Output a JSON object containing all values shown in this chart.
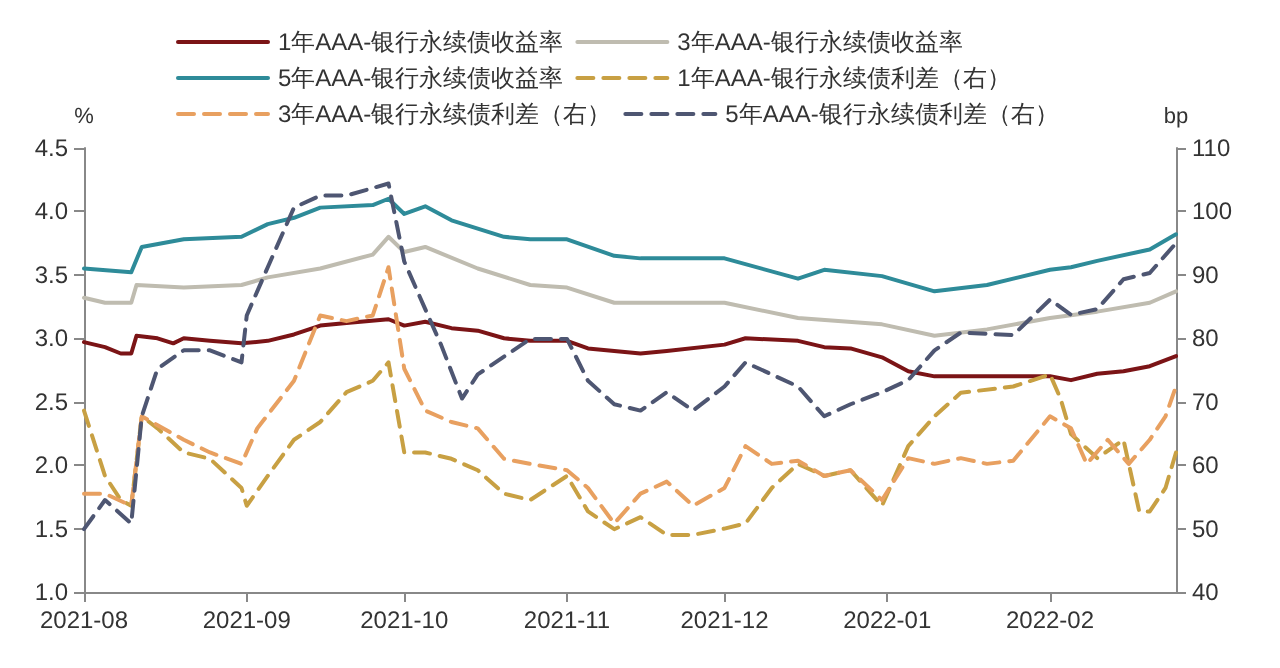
{
  "chart_data": {
    "type": "line",
    "ylabel": "%",
    "y2label": "bp",
    "xlim": [
      "2021-08-01",
      "2022-02-25"
    ],
    "xticks": [
      "2021-08",
      "2021-09",
      "2021-10",
      "2021-11",
      "2021-12",
      "2022-01",
      "2022-02"
    ],
    "ylim": [
      1.0,
      4.5
    ],
    "yticks": [
      {
        "value": 1.0,
        "label": "1.0"
      },
      1.5,
      {
        "value": 2.0,
        "label": "2.0"
      },
      2.5,
      {
        "value": 3.0,
        "label": "3.0"
      },
      3.5,
      {
        "value": 4.0,
        "label": "4.0"
      },
      4.5
    ],
    "y2lim": [
      40,
      110
    ],
    "y2ticks": [
      40,
      50,
      60,
      70,
      80,
      90,
      100,
      110
    ],
    "grid": false,
    "legend": "top",
    "marker": "none",
    "series": [
      {
        "name": "1年AAA-银行永续债收益率",
        "color": "#7b1416",
        "line_style": "solid",
        "x": [
          "2021-08-01",
          "2021-08-05",
          "2021-08-08",
          "2021-08-10",
          "2021-08-11",
          "2021-08-15",
          "2021-08-18",
          "2021-08-20",
          "2021-08-25",
          "2021-08-31",
          "2021-09-05",
          "2021-09-10",
          "2021-09-15",
          "2021-09-20",
          "2021-09-28",
          "2021-10-01",
          "2021-10-05",
          "2021-10-10",
          "2021-10-15",
          "2021-10-20",
          "2021-10-25",
          "2021-11-01",
          "2021-11-05",
          "2021-11-10",
          "2021-11-15",
          "2021-11-20",
          "2021-12-01",
          "2021-12-05",
          "2021-12-15",
          "2021-12-20",
          "2021-12-25",
          "2021-12-31",
          "2022-01-05",
          "2022-01-10",
          "2022-01-20",
          "2022-02-01",
          "2022-02-05",
          "2022-02-10",
          "2022-02-15",
          "2022-02-20",
          "2022-02-25"
        ],
        "values": [
          2.97,
          2.93,
          2.88,
          2.88,
          3.02,
          3.0,
          2.96,
          3.0,
          2.98,
          2.96,
          2.98,
          3.03,
          3.1,
          3.12,
          3.15,
          3.1,
          3.13,
          3.08,
          3.06,
          3.0,
          2.98,
          2.98,
          2.92,
          2.9,
          2.88,
          2.9,
          2.95,
          3.0,
          2.98,
          2.93,
          2.92,
          2.85,
          2.74,
          2.7,
          2.7,
          2.7,
          2.67,
          2.72,
          2.74,
          2.78,
          2.86
        ]
      },
      {
        "name": "3年AAA-银行永续债收益率",
        "color": "#bfbcb0",
        "line_style": "solid",
        "x": [
          "2021-08-01",
          "2021-08-05",
          "2021-08-10",
          "2021-08-11",
          "2021-08-20",
          "2021-08-31",
          "2021-09-05",
          "2021-09-15",
          "2021-09-25",
          "2021-09-28",
          "2021-10-01",
          "2021-10-05",
          "2021-10-15",
          "2021-10-25",
          "2021-11-01",
          "2021-11-10",
          "2021-11-20",
          "2021-12-01",
          "2021-12-15",
          "2021-12-31",
          "2022-01-10",
          "2022-01-20",
          "2022-02-01",
          "2022-02-10",
          "2022-02-20",
          "2022-02-25"
        ],
        "values": [
          3.32,
          3.28,
          3.28,
          3.42,
          3.4,
          3.42,
          3.48,
          3.55,
          3.66,
          3.8,
          3.68,
          3.72,
          3.55,
          3.42,
          3.4,
          3.28,
          3.28,
          3.28,
          3.16,
          3.11,
          3.02,
          3.07,
          3.16,
          3.21,
          3.28,
          3.37
        ]
      },
      {
        "name": "5年AAA-银行永续债收益率",
        "color": "#2e8b99",
        "line_style": "solid",
        "x": [
          "2021-08-01",
          "2021-08-10",
          "2021-08-12",
          "2021-08-20",
          "2021-08-31",
          "2021-09-05",
          "2021-09-10",
          "2021-09-15",
          "2021-09-25",
          "2021-09-28",
          "2021-10-01",
          "2021-10-05",
          "2021-10-10",
          "2021-10-20",
          "2021-10-25",
          "2021-11-01",
          "2021-11-10",
          "2021-11-15",
          "2021-12-01",
          "2021-12-15",
          "2021-12-20",
          "2021-12-31",
          "2022-01-10",
          "2022-01-20",
          "2022-02-01",
          "2022-02-05",
          "2022-02-10",
          "2022-02-20",
          "2022-02-25"
        ],
        "values": [
          3.55,
          3.52,
          3.72,
          3.78,
          3.8,
          3.9,
          3.95,
          4.03,
          4.05,
          4.1,
          3.98,
          4.04,
          3.93,
          3.8,
          3.78,
          3.78,
          3.65,
          3.63,
          3.63,
          3.47,
          3.54,
          3.49,
          3.37,
          3.42,
          3.54,
          3.56,
          3.61,
          3.7,
          3.82
        ]
      },
      {
        "name": "1年AAA-银行永续债利差（右）",
        "color": "#c8a043",
        "line_style": "dashed",
        "axis": "y2",
        "x": [
          "2021-08-01",
          "2021-08-05",
          "2021-08-08",
          "2021-08-10",
          "2021-08-12",
          "2021-08-15",
          "2021-08-20",
          "2021-08-25",
          "2021-08-31",
          "2021-09-01",
          "2021-09-05",
          "2021-09-10",
          "2021-09-15",
          "2021-09-20",
          "2021-09-25",
          "2021-09-28",
          "2021-10-01",
          "2021-10-05",
          "2021-10-10",
          "2021-10-15",
          "2021-10-20",
          "2021-10-25",
          "2021-11-01",
          "2021-11-05",
          "2021-11-10",
          "2021-11-15",
          "2021-11-20",
          "2021-11-25",
          "2021-12-01",
          "2021-12-05",
          "2021-12-10",
          "2021-12-15",
          "2021-12-20",
          "2021-12-25",
          "2021-12-31",
          "2022-01-05",
          "2022-01-10",
          "2022-01-15",
          "2022-01-25",
          "2022-02-01",
          "2022-02-03",
          "2022-02-05",
          "2022-02-10",
          "2022-02-15",
          "2022-02-18",
          "2022-02-20",
          "2022-02-23",
          "2022-02-25"
        ],
        "values": [
          68.6,
          58.3,
          54.5,
          53.6,
          67.7,
          65.8,
          62,
          61,
          56.4,
          53.6,
          58.3,
          64,
          66.8,
          71.5,
          73.3,
          76.2,
          62,
          62,
          61,
          59.2,
          55.5,
          54.5,
          58.3,
          52.7,
          49.9,
          51.8,
          49,
          49,
          50,
          50.8,
          56.4,
          60.2,
          58.3,
          59.2,
          53.6,
          63,
          67.7,
          71.4,
          72.4,
          74.3,
          70.5,
          64.9,
          61.1,
          64,
          52.7,
          52.7,
          56.4,
          62
        ]
      },
      {
        "name": "3年AAA-银行永续债利差（右）",
        "color": "#e8a060",
        "line_style": "dashed",
        "axis": "y2",
        "x": [
          "2021-08-01",
          "2021-08-05",
          "2021-08-10",
          "2021-08-12",
          "2021-08-20",
          "2021-08-25",
          "2021-08-31",
          "2021-09-03",
          "2021-09-10",
          "2021-09-15",
          "2021-09-20",
          "2021-09-25",
          "2021-09-28",
          "2021-10-01",
          "2021-10-05",
          "2021-10-10",
          "2021-10-15",
          "2021-10-20",
          "2021-10-25",
          "2021-11-01",
          "2021-11-05",
          "2021-11-10",
          "2021-11-15",
          "2021-11-20",
          "2021-11-25",
          "2021-12-01",
          "2021-12-05",
          "2021-12-10",
          "2021-12-15",
          "2021-12-20",
          "2021-12-25",
          "2021-12-31",
          "2022-01-05",
          "2022-01-10",
          "2022-01-15",
          "2022-01-20",
          "2022-01-25",
          "2022-02-01",
          "2022-02-05",
          "2022-02-08",
          "2022-02-12",
          "2022-02-16",
          "2022-02-20",
          "2022-02-23",
          "2022-02-25"
        ],
        "values": [
          55.5,
          55.5,
          53.6,
          67.7,
          64,
          62,
          60.2,
          65.8,
          73.3,
          83.6,
          82.7,
          83.6,
          91.2,
          75.2,
          68.6,
          66.8,
          65.8,
          61,
          60.2,
          59.2,
          56.4,
          50.8,
          55.5,
          57.4,
          53.6,
          56.4,
          63,
          60.2,
          60.7,
          58.3,
          59.2,
          54.5,
          61.1,
          60.2,
          61.1,
          60.2,
          60.7,
          67.7,
          65.8,
          60.2,
          64,
          60.2,
          64,
          67.7,
          72.4
        ]
      },
      {
        "name": "5年AAA-银行永续债利差（右）",
        "color": "#4e5672",
        "line_style": "dashed",
        "axis": "y2",
        "x": [
          "2021-08-01",
          "2021-08-05",
          "2021-08-10",
          "2021-08-12",
          "2021-08-15",
          "2021-08-20",
          "2021-08-25",
          "2021-08-31",
          "2021-09-01",
          "2021-09-05",
          "2021-09-10",
          "2021-09-15",
          "2021-09-20",
          "2021-09-28",
          "2021-10-01",
          "2021-10-05",
          "2021-10-08",
          "2021-10-12",
          "2021-10-15",
          "2021-10-20",
          "2021-10-25",
          "2021-11-01",
          "2021-11-05",
          "2021-11-10",
          "2021-11-15",
          "2021-11-20",
          "2021-11-25",
          "2021-12-01",
          "2021-12-05",
          "2021-12-10",
          "2021-12-15",
          "2021-12-20",
          "2021-12-25",
          "2021-12-31",
          "2022-01-05",
          "2022-01-10",
          "2022-01-15",
          "2022-01-25",
          "2022-02-01",
          "2022-02-05",
          "2022-02-10",
          "2022-02-15",
          "2022-02-20",
          "2022-02-25"
        ],
        "values": [
          49.9,
          54.5,
          50.8,
          67.7,
          75.2,
          78.1,
          78.1,
          76.2,
          83.6,
          91.2,
          100.6,
          102.5,
          102.5,
          104.4,
          92.1,
          84.6,
          79,
          70.5,
          74.3,
          77.1,
          79.9,
          79.9,
          73.3,
          69.6,
          68.6,
          71.5,
          68.6,
          72.4,
          76.2,
          74.3,
          72.4,
          67.7,
          69.6,
          71.5,
          73.4,
          78.1,
          80.9,
          80.5,
          86.1,
          83.7,
          84.6,
          89.3,
          90.3,
          95
        ]
      }
    ]
  }
}
